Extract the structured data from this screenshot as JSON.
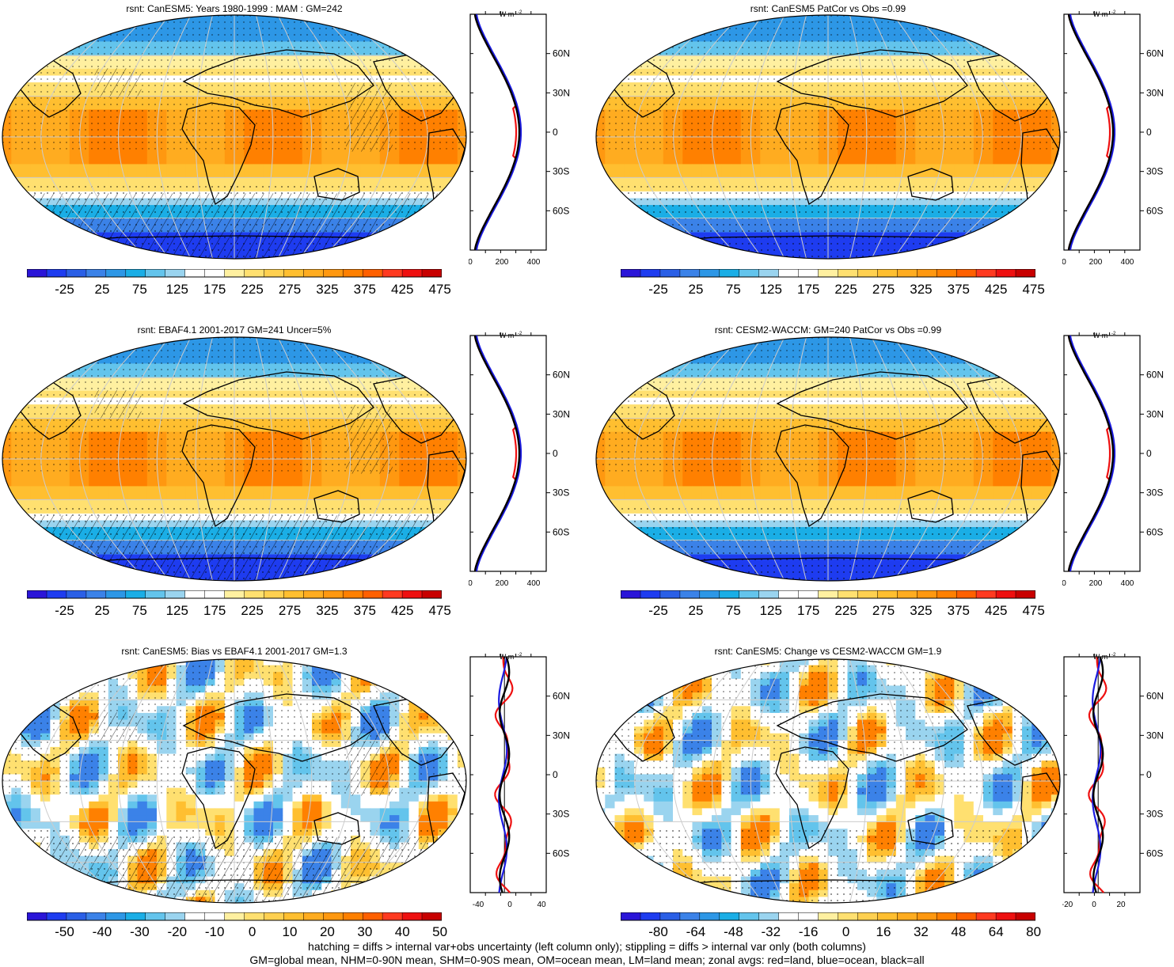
{
  "panels": [
    {
      "title": "rsnt: CanESM5: Years 1980-1999 : MAM : GM=242",
      "kind": "abs",
      "hatch": true,
      "colorbar_labels": [
        "-25",
        "25",
        "75",
        "125",
        "175",
        "225",
        "275",
        "325",
        "375",
        "425",
        "475"
      ],
      "zonal_ticks": [
        "0",
        "200",
        "400"
      ]
    },
    {
      "title": "rsnt: CanESM5 PatCor vs Obs =0.99",
      "kind": "abs",
      "hatch": false,
      "colorbar_labels": [
        "-25",
        "25",
        "75",
        "125",
        "175",
        "225",
        "275",
        "325",
        "375",
        "425",
        "475"
      ],
      "zonal_ticks": [
        "0",
        "200",
        "400"
      ]
    },
    {
      "title": "rsnt: EBAF4.1 2001-2017 GM=241 Uncer=5%",
      "kind": "abs",
      "hatch": true,
      "colorbar_labels": [
        "-25",
        "25",
        "75",
        "125",
        "175",
        "225",
        "275",
        "325",
        "375",
        "425",
        "475"
      ],
      "zonal_ticks": [
        "0",
        "200",
        "400"
      ]
    },
    {
      "title": "rsnt: CESM2-WACCM: GM=240 PatCor vs Obs =0.99",
      "kind": "abs",
      "hatch": false,
      "colorbar_labels": [
        "-25",
        "25",
        "75",
        "125",
        "175",
        "225",
        "275",
        "325",
        "375",
        "425",
        "475"
      ],
      "zonal_ticks": [
        "0",
        "200",
        "400"
      ]
    },
    {
      "title": "rsnt: CanESM5: Bias vs EBAF4.1 2001-2017 GM=1.3",
      "kind": "diff",
      "hatch": true,
      "colorbar_labels": [
        "-50",
        "-40",
        "-30",
        "-20",
        "-10",
        "0",
        "10",
        "20",
        "30",
        "40",
        "50"
      ],
      "zonal_ticks": [
        "-40",
        "0",
        "40"
      ]
    },
    {
      "title": "rsnt: CanESM5: Change vs CESM2-WACCM GM=1.9",
      "kind": "diff",
      "hatch": false,
      "colorbar_labels": [
        "-80",
        "-64",
        "-48",
        "-32",
        "-16",
        "0",
        "16",
        "32",
        "48",
        "64",
        "80"
      ],
      "zonal_ticks": [
        "-20",
        "0",
        "20"
      ]
    }
  ],
  "zonal_units": "W m",
  "zonal_units_sup": "-2",
  "lat_labels": [
    "60N",
    "30N",
    "0",
    "30S",
    "60S"
  ],
  "palette_abs": [
    "#2a15d8",
    "#1e3cf0",
    "#2a5fe6",
    "#3b82e8",
    "#2d97e6",
    "#1aaee6",
    "#63c4ec",
    "#9ad4ef",
    "#ffffff",
    "#ffffff",
    "#fff0a0",
    "#ffe070",
    "#ffd050",
    "#ffbf30",
    "#ffac20",
    "#ff9810",
    "#ff8000",
    "#ff6000",
    "#ff3a20",
    "#ee1010",
    "#c80000"
  ],
  "palette_diff": [
    "#2a15d8",
    "#1e3cf0",
    "#2a5fe6",
    "#3b82e8",
    "#2d97e6",
    "#1aaee6",
    "#63c4ec",
    "#9ad4ef",
    "#ffffff",
    "#ffffff",
    "#fff0a0",
    "#ffe070",
    "#ffd050",
    "#ffbf30",
    "#ffac20",
    "#ff9810",
    "#ff8000",
    "#ff6000",
    "#ff3a20",
    "#ee1010",
    "#c80000"
  ],
  "legend_colors": {
    "land": "#ee1010",
    "ocean": "#1a1ae0",
    "all": "#000000"
  },
  "footer": {
    "line1": "hatching = diffs > internal var+obs uncertainty (left column only); stippling = diffs > internal var only (both columns)",
    "line2": "GM=global mean, NHM=0-90N mean, SHM=0-90S mean, OM=ocean mean, LM=land mean; zonal avgs: red=land, blue=ocean, black=all"
  }
}
